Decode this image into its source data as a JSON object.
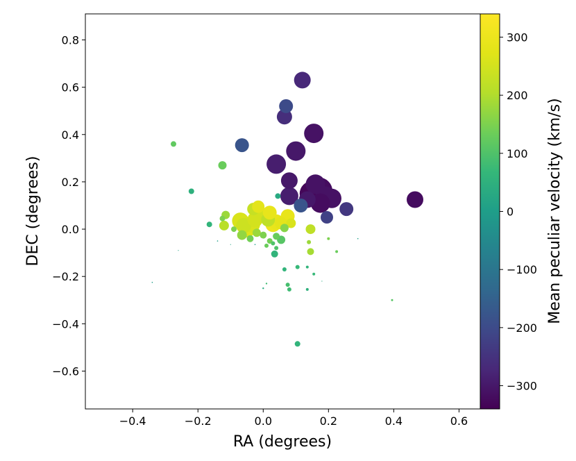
{
  "chart_data": {
    "type": "scatter",
    "title": "",
    "xlabel": "RA (degrees)",
    "ylabel": "DEC (degrees)",
    "xlim": [
      -0.545,
      0.665
    ],
    "ylim": [
      -0.76,
      0.91
    ],
    "xticks": [
      -0.4,
      -0.2,
      0.0,
      0.2,
      0.4,
      0.6
    ],
    "xtick_labels": [
      "−0.4",
      "−0.2",
      "0.0",
      "0.2",
      "0.4",
      "0.6"
    ],
    "yticks": [
      -0.6,
      -0.4,
      -0.2,
      0.0,
      0.2,
      0.4,
      0.6,
      0.8
    ],
    "ytick_labels": [
      "−0.6",
      "−0.4",
      "−0.2",
      "0.0",
      "0.2",
      "0.4",
      "0.6",
      "0.8"
    ],
    "grid": false,
    "colorbar": {
      "label": "Mean peculiar velocity (km/s)",
      "colormap": "viridis",
      "range": [
        -340,
        340
      ],
      "ticks": [
        -300,
        -200,
        -100,
        0,
        100,
        200,
        300
      ],
      "tick_labels": [
        "−300",
        "−200",
        "−100",
        "0",
        "100",
        "200",
        "300"
      ]
    },
    "points": [
      {
        "ra": 0.12,
        "dec": 0.63,
        "size": 12,
        "vel": -270
      },
      {
        "ra": 0.07,
        "dec": 0.52,
        "size": 10,
        "vel": -200
      },
      {
        "ra": 0.065,
        "dec": 0.475,
        "size": 11,
        "vel": -260
      },
      {
        "ra": 0.155,
        "dec": 0.405,
        "size": 14,
        "vel": -310
      },
      {
        "ra": 0.1,
        "dec": 0.33,
        "size": 14,
        "vel": -300
      },
      {
        "ra": -0.065,
        "dec": 0.355,
        "size": 10,
        "vel": -180
      },
      {
        "ra": 0.04,
        "dec": 0.275,
        "size": 14,
        "vel": -290
      },
      {
        "ra": 0.08,
        "dec": 0.205,
        "size": 12,
        "vel": -300
      },
      {
        "ra": 0.08,
        "dec": 0.14,
        "size": 13,
        "vel": -290
      },
      {
        "ra": 0.115,
        "dec": 0.1,
        "size": 10,
        "vel": -180
      },
      {
        "ra": 0.16,
        "dec": 0.19,
        "size": 14,
        "vel": -310
      },
      {
        "ra": 0.17,
        "dec": 0.16,
        "size": 20,
        "vel": -320
      },
      {
        "ra": 0.15,
        "dec": 0.15,
        "size": 18,
        "vel": -330
      },
      {
        "ra": 0.19,
        "dec": 0.14,
        "size": 14,
        "vel": -310
      },
      {
        "ra": 0.21,
        "dec": 0.13,
        "size": 14,
        "vel": -310
      },
      {
        "ra": 0.175,
        "dec": 0.11,
        "size": 14,
        "vel": -320
      },
      {
        "ra": 0.135,
        "dec": 0.125,
        "size": 12,
        "vel": -300
      },
      {
        "ra": 0.195,
        "dec": 0.05,
        "size": 9,
        "vel": -220
      },
      {
        "ra": 0.255,
        "dec": 0.085,
        "size": 10,
        "vel": -240
      },
      {
        "ra": 0.465,
        "dec": 0.125,
        "size": 12,
        "vel": -320
      },
      {
        "ra": -0.275,
        "dec": 0.36,
        "size": 4,
        "vel": 120
      },
      {
        "ra": -0.125,
        "dec": 0.27,
        "size": 6,
        "vel": 130
      },
      {
        "ra": -0.22,
        "dec": 0.16,
        "size": 4,
        "vel": 50
      },
      {
        "ra": 0.045,
        "dec": 0.14,
        "size": 4,
        "vel": 30
      },
      {
        "ra": -0.165,
        "dec": 0.02,
        "size": 4,
        "vel": 60
      },
      {
        "ra": -0.115,
        "dec": 0.06,
        "size": 6,
        "vel": 180
      },
      {
        "ra": -0.125,
        "dec": 0.045,
        "size": 4,
        "vel": 150
      },
      {
        "ra": -0.12,
        "dec": 0.015,
        "size": 7,
        "vel": 210
      },
      {
        "ra": -0.09,
        "dec": 0.0,
        "size": 4,
        "vel": 150
      },
      {
        "ra": -0.07,
        "dec": 0.035,
        "size": 12,
        "vel": 260
      },
      {
        "ra": -0.06,
        "dec": 0.015,
        "size": 11,
        "vel": 240
      },
      {
        "ra": -0.05,
        "dec": 0.0,
        "size": 12,
        "vel": 270
      },
      {
        "ra": -0.035,
        "dec": 0.02,
        "size": 12,
        "vel": 260
      },
      {
        "ra": -0.025,
        "dec": 0.04,
        "size": 11,
        "vel": 250
      },
      {
        "ra": -0.03,
        "dec": 0.085,
        "size": 9,
        "vel": 230
      },
      {
        "ra": -0.015,
        "dec": 0.095,
        "size": 9,
        "vel": 280
      },
      {
        "ra": 0.0,
        "dec": 0.06,
        "size": 10,
        "vel": 250
      },
      {
        "ra": 0.015,
        "dec": 0.04,
        "size": 10,
        "vel": 220
      },
      {
        "ra": 0.02,
        "dec": 0.07,
        "size": 10,
        "vel": 290
      },
      {
        "ra": 0.03,
        "dec": 0.02,
        "size": 11,
        "vel": 300
      },
      {
        "ra": 0.04,
        "dec": 0.03,
        "size": 11,
        "vel": 290
      },
      {
        "ra": 0.055,
        "dec": 0.025,
        "size": 9,
        "vel": 280
      },
      {
        "ra": 0.075,
        "dec": 0.055,
        "size": 10,
        "vel": 290
      },
      {
        "ra": 0.085,
        "dec": 0.025,
        "size": 7,
        "vel": 260
      },
      {
        "ra": 0.065,
        "dec": 0.005,
        "size": 6,
        "vel": 160
      },
      {
        "ra": -0.065,
        "dec": -0.025,
        "size": 7,
        "vel": 170
      },
      {
        "ra": -0.04,
        "dec": -0.04,
        "size": 5,
        "vel": 140
      },
      {
        "ra": -0.02,
        "dec": -0.015,
        "size": 6,
        "vel": 180
      },
      {
        "ra": 0.0,
        "dec": -0.025,
        "size": 5,
        "vel": 150
      },
      {
        "ra": 0.02,
        "dec": -0.05,
        "size": 4,
        "vel": 140
      },
      {
        "ra": 0.04,
        "dec": -0.03,
        "size": 5,
        "vel": 130
      },
      {
        "ra": 0.055,
        "dec": -0.045,
        "size": 6,
        "vel": 110
      },
      {
        "ra": 0.03,
        "dec": -0.06,
        "size": 3,
        "vel": 100
      },
      {
        "ra": 0.01,
        "dec": -0.07,
        "size": 3,
        "vel": 130
      },
      {
        "ra": 0.04,
        "dec": -0.08,
        "size": 3,
        "vel": 100
      },
      {
        "ra": 0.035,
        "dec": -0.105,
        "size": 5,
        "vel": 60
      },
      {
        "ra": 0.145,
        "dec": 0.0,
        "size": 7,
        "vel": 220
      },
      {
        "ra": 0.14,
        "dec": -0.055,
        "size": 3,
        "vel": 180
      },
      {
        "ra": 0.145,
        "dec": -0.095,
        "size": 5,
        "vel": 190
      },
      {
        "ra": 0.2,
        "dec": -0.04,
        "size": 2,
        "vel": 150
      },
      {
        "ra": 0.225,
        "dec": -0.095,
        "size": 2,
        "vel": 130
      },
      {
        "ra": 0.065,
        "dec": -0.17,
        "size": 3,
        "vel": 60
      },
      {
        "ra": 0.105,
        "dec": -0.16,
        "size": 3,
        "vel": 70
      },
      {
        "ra": 0.135,
        "dec": -0.16,
        "size": 2,
        "vel": 60
      },
      {
        "ra": 0.155,
        "dec": -0.19,
        "size": 2,
        "vel": 70
      },
      {
        "ra": 0.075,
        "dec": -0.235,
        "size": 3,
        "vel": 90
      },
      {
        "ra": 0.08,
        "dec": -0.255,
        "size": 3,
        "vel": 80
      },
      {
        "ra": 0.135,
        "dec": -0.255,
        "size": 2,
        "vel": 50
      },
      {
        "ra": 0.0,
        "dec": -0.25,
        "size": 1.2,
        "vel": 40
      },
      {
        "ra": 0.01,
        "dec": -0.23,
        "size": 1.2,
        "vel": 80
      },
      {
        "ra": 0.395,
        "dec": -0.3,
        "size": 1.5,
        "vel": 110
      },
      {
        "ra": 0.105,
        "dec": -0.485,
        "size": 4,
        "vel": 60
      },
      {
        "ra": -0.34,
        "dec": -0.225,
        "size": 0.8,
        "vel": 0
      },
      {
        "ra": -0.26,
        "dec": -0.09,
        "size": 0.6,
        "vel": 20
      },
      {
        "ra": -0.14,
        "dec": -0.05,
        "size": 0.8,
        "vel": 0
      },
      {
        "ra": -0.1,
        "dec": -0.065,
        "size": 0.6,
        "vel": 20
      },
      {
        "ra": -0.025,
        "dec": -0.065,
        "size": 0.8,
        "vel": 0
      },
      {
        "ra": 0.29,
        "dec": -0.04,
        "size": 0.8,
        "vel": 0
      },
      {
        "ra": 0.18,
        "dec": -0.22,
        "size": 0.6,
        "vel": 30
      }
    ]
  }
}
